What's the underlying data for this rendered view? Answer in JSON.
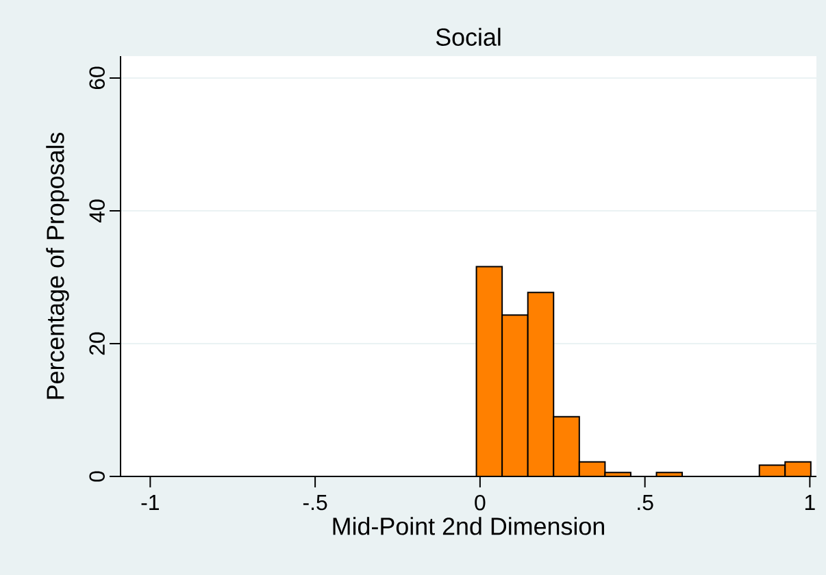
{
  "chart_data": {
    "type": "histogram",
    "title": "Social",
    "xlabel": "Mid-Point 2nd Dimension",
    "ylabel": "Percentage of Proposals",
    "bins": [
      -0.011,
      0.067,
      0.145,
      0.223,
      0.301,
      0.379,
      0.457,
      0.535,
      0.613,
      0.691,
      0.769,
      0.847,
      0.925,
      1.003
    ],
    "values": [
      31.6,
      24.3,
      27.7,
      9.0,
      2.2,
      0.6,
      0,
      0.6,
      0,
      0,
      0,
      1.7,
      2.2
    ],
    "color": "#ff8000",
    "xlim": [
      -1.09,
      1.02
    ],
    "ylim": [
      0,
      63.3
    ],
    "xticks": [
      {
        "value": -1,
        "label": "-1"
      },
      {
        "value": -0.5,
        "label": "-.5"
      },
      0,
      {
        "value": 0.5,
        "label": ".5"
      },
      1
    ],
    "yticks": [
      0,
      20,
      40,
      60
    ],
    "grid": "y"
  }
}
